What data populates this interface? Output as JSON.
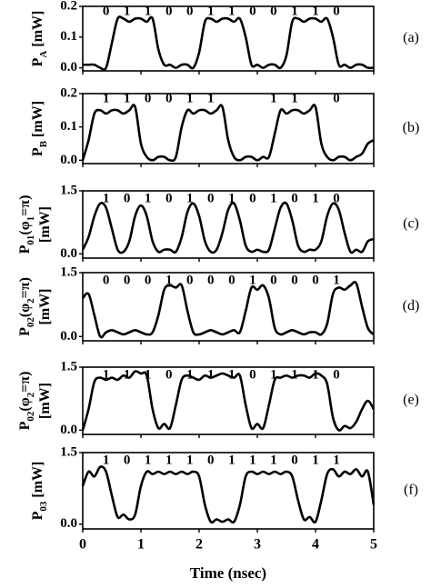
{
  "chart_data": [
    {
      "type": "line",
      "color": "#000000",
      "panel_label": "(a)",
      "y_label": [
        [
          {
            "text": "P"
          },
          {
            "text": "A",
            "sub": true
          },
          {
            "text": " [mW]"
          }
        ]
      ],
      "ylim": [
        -0.01,
        0.2
      ],
      "yticks": [
        {
          "value": 0,
          "label": "0.0"
        },
        0.1,
        0.2
      ],
      "xlim": [
        0,
        5
      ],
      "xticks": [
        0,
        1,
        2,
        3,
        4,
        5
      ],
      "bits": [
        "0",
        "1",
        "1",
        "0",
        "0",
        "1",
        "1",
        "0",
        "0",
        "1",
        "1",
        "0"
      ],
      "x": [
        0,
        0.1,
        0.2,
        0.3,
        0.4,
        0.5,
        0.6,
        0.7,
        0.8,
        0.9,
        1,
        1.1,
        1.2,
        1.3,
        1.4,
        1.5,
        1.6,
        1.7,
        1.8,
        1.9,
        2,
        2.1,
        2.2,
        2.3,
        2.4,
        2.5,
        2.6,
        2.7,
        2.8,
        2.9,
        3,
        3.1,
        3.2,
        3.3,
        3.4,
        3.5,
        3.6,
        3.7,
        3.8,
        3.9,
        4,
        4.1,
        4.2,
        4.3,
        4.4,
        4.5,
        4.6,
        4.7,
        4.8,
        4.9,
        5
      ],
      "values": [
        0.01,
        0.01,
        0.01,
        0.0,
        0.0,
        0.08,
        0.16,
        0.16,
        0.15,
        0.16,
        0.16,
        0.15,
        0.16,
        0.06,
        0.01,
        0.01,
        0.0,
        0.01,
        0.01,
        0.0,
        0.05,
        0.15,
        0.16,
        0.15,
        0.16,
        0.16,
        0.15,
        0.16,
        0.1,
        0.01,
        0.01,
        0.0,
        0.01,
        0.01,
        0.0,
        0.04,
        0.15,
        0.16,
        0.15,
        0.16,
        0.16,
        0.15,
        0.16,
        0.1,
        0.01,
        0.01,
        0.0,
        0.01,
        0.01,
        0.0,
        0.0
      ]
    },
    {
      "type": "line",
      "color": "#000000",
      "panel_label": "(b)",
      "y_label": [
        [
          {
            "text": "P"
          },
          {
            "text": "B",
            "sub": true
          },
          {
            "text": " [mW]"
          }
        ]
      ],
      "ylim": [
        -0.01,
        0.2
      ],
      "yticks": [
        {
          "value": 0,
          "label": "0.0"
        },
        0.1,
        0.2
      ],
      "xlim": [
        0,
        5
      ],
      "xticks": [
        0,
        1,
        2,
        3,
        4,
        5
      ],
      "bits": [
        "1",
        "1",
        "0",
        "0",
        "1",
        "1",
        null,
        null,
        "1",
        "1",
        null,
        "0"
      ],
      "x": [
        0,
        0.1,
        0.2,
        0.3,
        0.4,
        0.5,
        0.6,
        0.7,
        0.8,
        0.9,
        1,
        1.1,
        1.2,
        1.3,
        1.4,
        1.5,
        1.6,
        1.7,
        1.8,
        1.9,
        2,
        2.1,
        2.2,
        2.3,
        2.4,
        2.5,
        2.6,
        2.7,
        2.8,
        2.9,
        3,
        3.1,
        3.2,
        3.3,
        3.4,
        3.5,
        3.6,
        3.7,
        3.8,
        3.9,
        4,
        4.1,
        4.2,
        4.3,
        4.4,
        4.5,
        4.6,
        4.7,
        4.8,
        4.9,
        5
      ],
      "values": [
        0.0,
        0.06,
        0.14,
        0.15,
        0.14,
        0.15,
        0.15,
        0.14,
        0.15,
        0.16,
        0.05,
        0.01,
        0.0,
        0.01,
        0.01,
        0.0,
        0.01,
        0.1,
        0.15,
        0.14,
        0.15,
        0.15,
        0.14,
        0.15,
        0.16,
        0.06,
        0.01,
        0.0,
        0.01,
        0.01,
        0.0,
        0.01,
        0.01,
        0.08,
        0.15,
        0.14,
        0.15,
        0.15,
        0.14,
        0.15,
        0.16,
        0.05,
        0.01,
        0.0,
        0.01,
        0.01,
        0.0,
        0.01,
        0.02,
        0.05,
        0.06
      ]
    },
    {
      "type": "line",
      "color": "#000000",
      "panel_label": "(c)",
      "y_label": [
        [
          {
            "text": "P"
          },
          {
            "text": "01",
            "sub": true
          },
          {
            "text": "(φ"
          },
          {
            "text": "1",
            "sub": true
          },
          {
            "text": "=π)"
          }
        ],
        [
          {
            "text": "[mW]"
          }
        ]
      ],
      "ylim": [
        -0.1,
        1.5
      ],
      "yticks": [
        {
          "value": 0,
          "label": "0.0"
        },
        1.5
      ],
      "xlim": [
        0,
        5
      ],
      "xticks": [
        0,
        1,
        2,
        3,
        4,
        5
      ],
      "bits": [
        "1",
        "0",
        "1",
        "0",
        "1",
        "0",
        "1",
        "0",
        "1",
        "0",
        "1",
        "0"
      ],
      "x": [
        0,
        0.1,
        0.2,
        0.3,
        0.4,
        0.5,
        0.6,
        0.7,
        0.8,
        0.9,
        1,
        1.1,
        1.2,
        1.3,
        1.4,
        1.5,
        1.6,
        1.7,
        1.8,
        1.9,
        2,
        2.1,
        2.2,
        2.3,
        2.4,
        2.5,
        2.6,
        2.7,
        2.8,
        2.9,
        3,
        3.1,
        3.2,
        3.3,
        3.4,
        3.5,
        3.6,
        3.7,
        3.8,
        3.9,
        4,
        4.1,
        4.2,
        4.3,
        4.4,
        4.5,
        4.6,
        4.7,
        4.8,
        4.9,
        5
      ],
      "values": [
        0.1,
        0.4,
        0.9,
        1.2,
        1.1,
        0.6,
        0.1,
        0.05,
        0.3,
        0.9,
        1.15,
        0.9,
        0.3,
        0.05,
        0.1,
        0.1,
        0.05,
        0.4,
        1.0,
        1.2,
        0.9,
        0.3,
        0.05,
        0.1,
        0.5,
        1.05,
        1.2,
        0.8,
        0.2,
        0.05,
        0.1,
        0.05,
        0.1,
        0.6,
        1.1,
        1.2,
        0.8,
        0.2,
        0.05,
        0.1,
        0.1,
        0.3,
        0.9,
        1.2,
        1.05,
        0.5,
        0.05,
        0.1,
        0.05,
        0.3,
        0.35
      ]
    },
    {
      "type": "line",
      "color": "#000000",
      "panel_label": "(d)",
      "y_label": [
        [
          {
            "text": "P"
          },
          {
            "text": "02",
            "sub": true
          },
          {
            "text": "(φ"
          },
          {
            "text": "2",
            "sub": true
          },
          {
            "text": "=π)"
          }
        ],
        [
          {
            "text": "[mW]"
          }
        ]
      ],
      "ylim": [
        -0.1,
        1.5
      ],
      "yticks": [
        {
          "value": 0,
          "label": "0.0"
        },
        1.5
      ],
      "xlim": [
        0,
        5
      ],
      "xticks": [
        0,
        1,
        2,
        3,
        4,
        5
      ],
      "bits": [
        "0",
        "0",
        "0",
        "1",
        "0",
        "0",
        "0",
        "1",
        "0",
        "0",
        "0",
        "1"
      ],
      "x": [
        0,
        0.1,
        0.2,
        0.3,
        0.4,
        0.5,
        0.6,
        0.7,
        0.8,
        0.9,
        1,
        1.1,
        1.2,
        1.3,
        1.4,
        1.5,
        1.6,
        1.7,
        1.8,
        1.9,
        2,
        2.1,
        2.2,
        2.3,
        2.4,
        2.5,
        2.6,
        2.7,
        2.8,
        2.9,
        3,
        3.1,
        3.2,
        3.3,
        3.4,
        3.5,
        3.6,
        3.7,
        3.8,
        3.9,
        4,
        4.1,
        4.2,
        4.3,
        4.4,
        4.5,
        4.6,
        4.7,
        4.8,
        4.9,
        5
      ],
      "values": [
        0.9,
        1.0,
        0.5,
        0.0,
        0.1,
        0.15,
        0.1,
        0.05,
        0.1,
        0.15,
        0.1,
        0.05,
        0.1,
        0.5,
        1.1,
        1.2,
        1.15,
        1.2,
        0.6,
        0.1,
        0.05,
        0.1,
        0.15,
        0.1,
        0.05,
        0.1,
        0.15,
        0.1,
        0.6,
        1.15,
        1.1,
        1.2,
        0.9,
        0.2,
        0.05,
        0.1,
        0.15,
        0.1,
        0.05,
        0.1,
        0.1,
        0.05,
        0.3,
        1.0,
        1.15,
        1.1,
        1.2,
        1.25,
        0.7,
        0.2,
        0.05
      ]
    },
    {
      "type": "line",
      "color": "#000000",
      "panel_label": "(e)",
      "y_label": [
        [
          {
            "text": "P"
          },
          {
            "text": "02",
            "sub": true
          },
          {
            "text": "(φ"
          },
          {
            "text": "2",
            "sub": true
          },
          {
            "text": "=π)"
          }
        ],
        [
          {
            "text": "[mW]"
          }
        ]
      ],
      "ylim": [
        -0.1,
        1.5
      ],
      "yticks": [
        {
          "value": 0,
          "label": "0.0"
        },
        1.5
      ],
      "xlim": [
        0,
        5
      ],
      "xticks": [
        0,
        1,
        2,
        3,
        4,
        5
      ],
      "bits": [
        "1",
        "1",
        "1",
        "0",
        "1",
        "1",
        "1",
        "0",
        "1",
        "1",
        "1",
        "0"
      ],
      "x": [
        0,
        0.1,
        0.2,
        0.3,
        0.4,
        0.5,
        0.6,
        0.7,
        0.8,
        0.9,
        1,
        1.1,
        1.2,
        1.3,
        1.4,
        1.5,
        1.6,
        1.7,
        1.8,
        1.9,
        2,
        2.1,
        2.2,
        2.3,
        2.4,
        2.5,
        2.6,
        2.7,
        2.8,
        2.9,
        3,
        3.1,
        3.2,
        3.3,
        3.4,
        3.5,
        3.6,
        3.7,
        3.8,
        3.9,
        4,
        4.1,
        4.2,
        4.3,
        4.4,
        4.5,
        4.6,
        4.7,
        4.8,
        4.9,
        5
      ],
      "values": [
        0.0,
        0.5,
        1.15,
        1.25,
        1.2,
        1.25,
        1.2,
        1.3,
        1.25,
        1.4,
        1.35,
        1.3,
        0.5,
        0.05,
        0.15,
        0.05,
        0.6,
        1.2,
        1.3,
        1.25,
        1.2,
        1.3,
        1.25,
        1.3,
        1.35,
        1.3,
        1.25,
        1.3,
        0.6,
        0.05,
        0.15,
        0.05,
        0.6,
        1.2,
        1.25,
        1.3,
        1.25,
        1.3,
        1.3,
        1.25,
        1.35,
        1.3,
        1.1,
        0.3,
        0.0,
        0.1,
        0.05,
        0.2,
        0.5,
        0.7,
        0.5
      ]
    },
    {
      "type": "line",
      "color": "#000000",
      "panel_label": "(f)",
      "y_label": [
        [
          {
            "text": "P"
          },
          {
            "text": "03",
            "sub": true
          },
          {
            "text": " [mW]"
          }
        ]
      ],
      "ylim": [
        -0.1,
        1.5
      ],
      "yticks": [
        {
          "value": 0,
          "label": "0.0"
        },
        1.5
      ],
      "xlim": [
        0,
        5
      ],
      "xticks": [
        0,
        1,
        2,
        3,
        4,
        5
      ],
      "x_label": "Time (nsec)",
      "bits": [
        "1",
        "0",
        "1",
        "1",
        "1",
        "0",
        "1",
        "1",
        "1",
        "0",
        "1",
        "1"
      ],
      "x": [
        0,
        0.1,
        0.2,
        0.3,
        0.4,
        0.5,
        0.6,
        0.7,
        0.8,
        0.9,
        1,
        1.1,
        1.2,
        1.3,
        1.4,
        1.5,
        1.6,
        1.7,
        1.8,
        1.9,
        2,
        2.1,
        2.2,
        2.3,
        2.4,
        2.5,
        2.6,
        2.7,
        2.8,
        2.9,
        3,
        3.1,
        3.2,
        3.3,
        3.4,
        3.5,
        3.6,
        3.7,
        3.8,
        3.9,
        4,
        4.1,
        4.2,
        4.3,
        4.4,
        4.5,
        4.6,
        4.7,
        4.8,
        4.9,
        5
      ],
      "values": [
        0.8,
        1.1,
        1.0,
        1.2,
        1.1,
        0.6,
        0.15,
        0.2,
        0.1,
        0.2,
        0.8,
        1.1,
        1.05,
        1.1,
        1.05,
        1.1,
        1.05,
        1.1,
        1.05,
        1.1,
        1.0,
        0.4,
        0.05,
        0.1,
        0.05,
        0.1,
        0.05,
        0.4,
        1.0,
        1.1,
        1.05,
        1.1,
        1.05,
        1.1,
        1.05,
        1.1,
        1.0,
        0.5,
        0.1,
        0.15,
        0.05,
        0.5,
        1.05,
        1.15,
        1.0,
        1.1,
        1.05,
        1.15,
        1.0,
        1.1,
        0.4
      ]
    }
  ]
}
